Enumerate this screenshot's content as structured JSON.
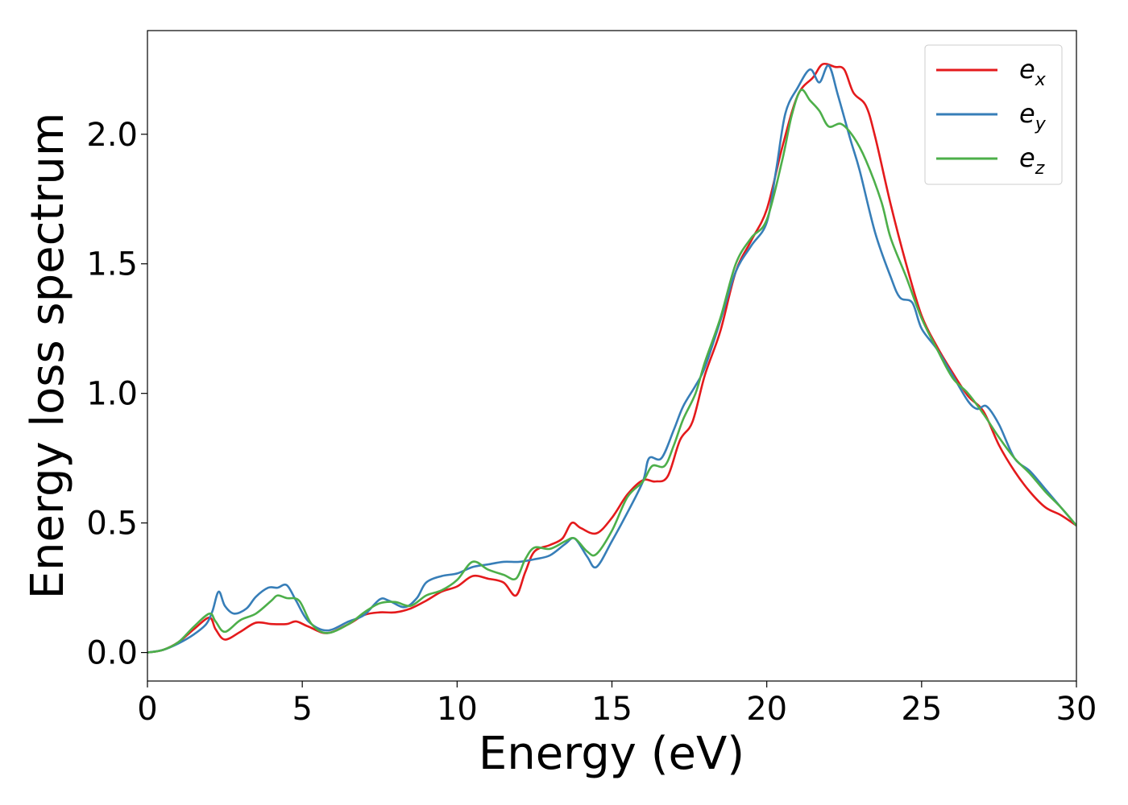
{
  "chart_data": {
    "type": "line",
    "title": "",
    "xlabel": "Energy (eV)",
    "ylabel": "Energy loss spectrum",
    "xlim": [
      0,
      30
    ],
    "ylim": [
      -0.11,
      2.4
    ],
    "xticks": [
      0,
      5,
      10,
      15,
      20,
      25,
      30
    ],
    "xtick_labels": [
      "0",
      "5",
      "10",
      "15",
      "20",
      "25",
      "30"
    ],
    "yticks": [
      0.0,
      0.5,
      1.0,
      1.5,
      2.0
    ],
    "ytick_labels": [
      "0.0",
      "0.5",
      "1.0",
      "1.5",
      "2.0"
    ],
    "grid": false,
    "legend_position": "top-right",
    "series": [
      {
        "name": "e_x",
        "legend_base": "e",
        "legend_sub": "x",
        "color": "#e41a1c",
        "points": [
          [
            0,
            0.0
          ],
          [
            0.5,
            0.01
          ],
          [
            1.0,
            0.04
          ],
          [
            1.5,
            0.09
          ],
          [
            2.0,
            0.135
          ],
          [
            2.2,
            0.09
          ],
          [
            2.5,
            0.05
          ],
          [
            3.0,
            0.08
          ],
          [
            3.5,
            0.115
          ],
          [
            4.0,
            0.11
          ],
          [
            4.5,
            0.11
          ],
          [
            4.8,
            0.12
          ],
          [
            5.2,
            0.1
          ],
          [
            5.8,
            0.075
          ],
          [
            6.5,
            0.11
          ],
          [
            7.0,
            0.145
          ],
          [
            7.5,
            0.155
          ],
          [
            8.0,
            0.155
          ],
          [
            8.5,
            0.17
          ],
          [
            9.0,
            0.2
          ],
          [
            9.5,
            0.235
          ],
          [
            10.0,
            0.255
          ],
          [
            10.5,
            0.295
          ],
          [
            11.0,
            0.285
          ],
          [
            11.5,
            0.27
          ],
          [
            11.9,
            0.22
          ],
          [
            12.2,
            0.31
          ],
          [
            12.5,
            0.39
          ],
          [
            13.0,
            0.415
          ],
          [
            13.4,
            0.44
          ],
          [
            13.7,
            0.5
          ],
          [
            14.0,
            0.48
          ],
          [
            14.5,
            0.46
          ],
          [
            15.0,
            0.52
          ],
          [
            15.5,
            0.61
          ],
          [
            16.0,
            0.665
          ],
          [
            16.4,
            0.66
          ],
          [
            16.8,
            0.68
          ],
          [
            17.2,
            0.82
          ],
          [
            17.6,
            0.89
          ],
          [
            18.0,
            1.07
          ],
          [
            18.5,
            1.24
          ],
          [
            19.0,
            1.47
          ],
          [
            19.5,
            1.59
          ],
          [
            20.0,
            1.71
          ],
          [
            20.5,
            1.95
          ],
          [
            21.0,
            2.15
          ],
          [
            21.5,
            2.22
          ],
          [
            21.8,
            2.27
          ],
          [
            22.2,
            2.26
          ],
          [
            22.5,
            2.25
          ],
          [
            22.8,
            2.16
          ],
          [
            23.2,
            2.11
          ],
          [
            23.5,
            1.99
          ],
          [
            24.0,
            1.73
          ],
          [
            24.5,
            1.5
          ],
          [
            25.0,
            1.3
          ],
          [
            25.5,
            1.18
          ],
          [
            26.0,
            1.08
          ],
          [
            26.5,
            0.99
          ],
          [
            27.0,
            0.93
          ],
          [
            27.5,
            0.8
          ],
          [
            28.0,
            0.7
          ],
          [
            28.5,
            0.62
          ],
          [
            29.0,
            0.56
          ],
          [
            29.5,
            0.53
          ],
          [
            30.0,
            0.49
          ]
        ]
      },
      {
        "name": "e_y",
        "legend_base": "e",
        "legend_sub": "y",
        "color": "#377eb8",
        "points": [
          [
            0,
            0.0
          ],
          [
            0.5,
            0.01
          ],
          [
            1.0,
            0.035
          ],
          [
            1.5,
            0.07
          ],
          [
            1.9,
            0.11
          ],
          [
            2.1,
            0.16
          ],
          [
            2.3,
            0.235
          ],
          [
            2.5,
            0.18
          ],
          [
            2.8,
            0.15
          ],
          [
            3.2,
            0.17
          ],
          [
            3.5,
            0.215
          ],
          [
            3.9,
            0.25
          ],
          [
            4.2,
            0.25
          ],
          [
            4.5,
            0.26
          ],
          [
            4.8,
            0.2
          ],
          [
            5.2,
            0.12
          ],
          [
            5.8,
            0.085
          ],
          [
            6.5,
            0.12
          ],
          [
            7.0,
            0.145
          ],
          [
            7.5,
            0.205
          ],
          [
            7.8,
            0.2
          ],
          [
            8.3,
            0.175
          ],
          [
            8.7,
            0.21
          ],
          [
            9.0,
            0.27
          ],
          [
            9.5,
            0.295
          ],
          [
            10.0,
            0.305
          ],
          [
            10.5,
            0.33
          ],
          [
            11.0,
            0.34
          ],
          [
            11.5,
            0.35
          ],
          [
            12.0,
            0.35
          ],
          [
            12.5,
            0.36
          ],
          [
            13.0,
            0.375
          ],
          [
            13.5,
            0.42
          ],
          [
            13.8,
            0.44
          ],
          [
            14.2,
            0.37
          ],
          [
            14.5,
            0.33
          ],
          [
            15.0,
            0.43
          ],
          [
            15.5,
            0.54
          ],
          [
            16.0,
            0.66
          ],
          [
            16.2,
            0.75
          ],
          [
            16.6,
            0.75
          ],
          [
            17.0,
            0.86
          ],
          [
            17.3,
            0.95
          ],
          [
            17.7,
            1.03
          ],
          [
            18.0,
            1.1
          ],
          [
            18.5,
            1.28
          ],
          [
            19.0,
            1.47
          ],
          [
            19.5,
            1.57
          ],
          [
            20.0,
            1.66
          ],
          [
            20.3,
            1.86
          ],
          [
            20.6,
            2.08
          ],
          [
            21.0,
            2.18
          ],
          [
            21.4,
            2.25
          ],
          [
            21.7,
            2.2
          ],
          [
            22.0,
            2.265
          ],
          [
            22.3,
            2.15
          ],
          [
            22.7,
            1.98
          ],
          [
            23.0,
            1.86
          ],
          [
            23.5,
            1.62
          ],
          [
            24.0,
            1.45
          ],
          [
            24.3,
            1.37
          ],
          [
            24.7,
            1.35
          ],
          [
            25.0,
            1.25
          ],
          [
            25.5,
            1.17
          ],
          [
            26.0,
            1.07
          ],
          [
            26.5,
            0.97
          ],
          [
            26.8,
            0.94
          ],
          [
            27.1,
            0.95
          ],
          [
            27.5,
            0.88
          ],
          [
            28.0,
            0.75
          ],
          [
            28.5,
            0.7
          ],
          [
            29.0,
            0.63
          ],
          [
            29.5,
            0.56
          ],
          [
            30.0,
            0.49
          ]
        ]
      },
      {
        "name": "e_z",
        "legend_base": "e",
        "legend_sub": "z",
        "color": "#4daf4a",
        "points": [
          [
            0,
            0.0
          ],
          [
            0.5,
            0.01
          ],
          [
            1.0,
            0.04
          ],
          [
            1.5,
            0.1
          ],
          [
            2.0,
            0.15
          ],
          [
            2.2,
            0.12
          ],
          [
            2.5,
            0.08
          ],
          [
            3.0,
            0.125
          ],
          [
            3.5,
            0.15
          ],
          [
            4.0,
            0.2
          ],
          [
            4.2,
            0.22
          ],
          [
            4.5,
            0.21
          ],
          [
            4.9,
            0.2
          ],
          [
            5.3,
            0.11
          ],
          [
            5.8,
            0.075
          ],
          [
            6.5,
            0.11
          ],
          [
            7.0,
            0.155
          ],
          [
            7.5,
            0.19
          ],
          [
            8.0,
            0.195
          ],
          [
            8.5,
            0.18
          ],
          [
            9.0,
            0.22
          ],
          [
            9.5,
            0.24
          ],
          [
            10.0,
            0.28
          ],
          [
            10.5,
            0.35
          ],
          [
            11.0,
            0.32
          ],
          [
            11.5,
            0.3
          ],
          [
            11.9,
            0.285
          ],
          [
            12.2,
            0.36
          ],
          [
            12.5,
            0.405
          ],
          [
            13.0,
            0.4
          ],
          [
            13.5,
            0.43
          ],
          [
            13.8,
            0.44
          ],
          [
            14.2,
            0.39
          ],
          [
            14.5,
            0.38
          ],
          [
            15.0,
            0.47
          ],
          [
            15.5,
            0.6
          ],
          [
            16.0,
            0.66
          ],
          [
            16.3,
            0.72
          ],
          [
            16.7,
            0.72
          ],
          [
            17.0,
            0.8
          ],
          [
            17.3,
            0.9
          ],
          [
            17.7,
            1.0
          ],
          [
            18.0,
            1.12
          ],
          [
            18.5,
            1.29
          ],
          [
            19.0,
            1.5
          ],
          [
            19.5,
            1.6
          ],
          [
            20.0,
            1.67
          ],
          [
            20.5,
            1.9
          ],
          [
            20.8,
            2.07
          ],
          [
            21.1,
            2.17
          ],
          [
            21.4,
            2.13
          ],
          [
            21.7,
            2.09
          ],
          [
            22.0,
            2.03
          ],
          [
            22.4,
            2.04
          ],
          [
            22.8,
            1.99
          ],
          [
            23.2,
            1.9
          ],
          [
            23.7,
            1.74
          ],
          [
            24.0,
            1.6
          ],
          [
            24.5,
            1.45
          ],
          [
            25.0,
            1.29
          ],
          [
            25.5,
            1.17
          ],
          [
            26.0,
            1.06
          ],
          [
            26.5,
            1.0
          ],
          [
            27.0,
            0.92
          ],
          [
            27.5,
            0.83
          ],
          [
            28.0,
            0.75
          ],
          [
            28.5,
            0.69
          ],
          [
            29.0,
            0.62
          ],
          [
            29.5,
            0.56
          ],
          [
            30.0,
            0.49
          ]
        ]
      }
    ]
  }
}
